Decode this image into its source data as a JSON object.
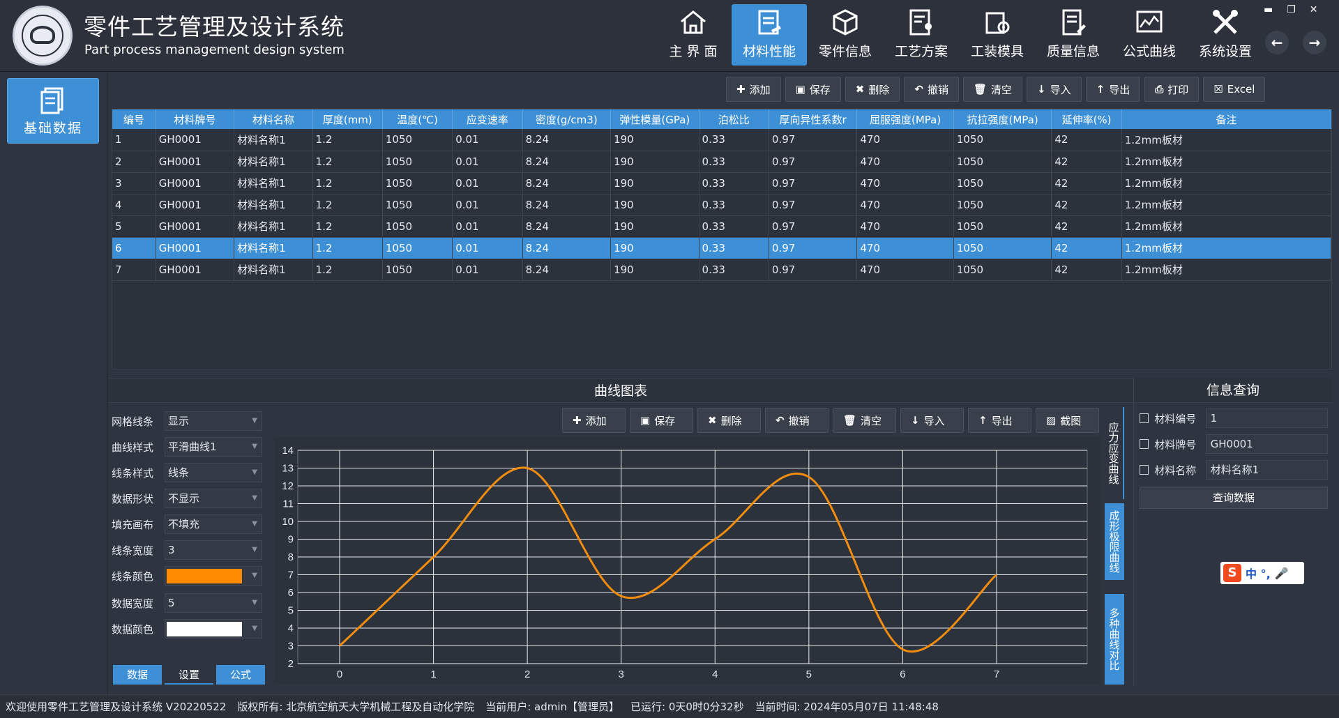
{
  "app": {
    "title_cn": "零件工艺管理及设计系统",
    "title_en": "Part process management design system",
    "nav": [
      {
        "label": "主 界 面",
        "icon": "home-icon"
      },
      {
        "label": "材料性能",
        "icon": "clipboard-icon",
        "active": true
      },
      {
        "label": "零件信息",
        "icon": "box-icon"
      },
      {
        "label": "工艺方案",
        "icon": "document-user-icon"
      },
      {
        "label": "工装模具",
        "icon": "gear-doc-icon"
      },
      {
        "label": "质量信息",
        "icon": "edit-doc-icon"
      },
      {
        "label": "公式曲线",
        "icon": "chart-icon"
      },
      {
        "label": "系统设置",
        "icon": "tools-icon"
      }
    ]
  },
  "sidebar": {
    "basic_data": "基础数据"
  },
  "toolbar": {
    "add": "添加",
    "save": "保存",
    "delete": "删除",
    "undo": "撤销",
    "clear": "清空",
    "import": "导入",
    "export": "导出",
    "print": "打印",
    "excel": "Excel",
    "screenshot": "截图"
  },
  "table": {
    "columns": [
      "编号",
      "材料牌号",
      "材料名称",
      "厚度(mm)",
      "温度(℃)",
      "应变速率",
      "密度(g/cm3)",
      "弹性模量(GPa)",
      "泊松比",
      "厚向异性系数r",
      "屈服强度(MPa)",
      "抗拉强度(MPa)",
      "延伸率(%)",
      "备注"
    ],
    "rows": [
      [
        "1",
        "GH0001",
        "材料名称1",
        "1.2",
        "1050",
        "0.01",
        "8.24",
        "190",
        "0.33",
        "0.97",
        "470",
        "1050",
        "42",
        "1.2mm板材"
      ],
      [
        "2",
        "GH0001",
        "材料名称1",
        "1.2",
        "1050",
        "0.01",
        "8.24",
        "190",
        "0.33",
        "0.97",
        "470",
        "1050",
        "42",
        "1.2mm板材"
      ],
      [
        "3",
        "GH0001",
        "材料名称1",
        "1.2",
        "1050",
        "0.01",
        "8.24",
        "190",
        "0.33",
        "0.97",
        "470",
        "1050",
        "42",
        "1.2mm板材"
      ],
      [
        "4",
        "GH0001",
        "材料名称1",
        "1.2",
        "1050",
        "0.01",
        "8.24",
        "190",
        "0.33",
        "0.97",
        "470",
        "1050",
        "42",
        "1.2mm板材"
      ],
      [
        "5",
        "GH0001",
        "材料名称1",
        "1.2",
        "1050",
        "0.01",
        "8.24",
        "190",
        "0.33",
        "0.97",
        "470",
        "1050",
        "42",
        "1.2mm板材"
      ],
      [
        "6",
        "GH0001",
        "材料名称1",
        "1.2",
        "1050",
        "0.01",
        "8.24",
        "190",
        "0.33",
        "0.97",
        "470",
        "1050",
        "42",
        "1.2mm板材"
      ],
      [
        "7",
        "GH0001",
        "材料名称1",
        "1.2",
        "1050",
        "0.01",
        "8.24",
        "190",
        "0.33",
        "0.97",
        "470",
        "1050",
        "42",
        "1.2mm板材"
      ]
    ],
    "selected_row": 5
  },
  "chart_panel": {
    "title": "曲线图表",
    "settings": [
      {
        "label": "网格线条",
        "value": "显示"
      },
      {
        "label": "曲线样式",
        "value": "平滑曲线1"
      },
      {
        "label": "线条样式",
        "value": "线条"
      },
      {
        "label": "数据形状",
        "value": "不显示"
      },
      {
        "label": "填充画布",
        "value": "不填充"
      },
      {
        "label": "线条宽度",
        "value": "3"
      },
      {
        "label": "线条颜色",
        "value": "",
        "color": "#ff8c00"
      },
      {
        "label": "数据宽度",
        "value": "5"
      },
      {
        "label": "数据颜色",
        "value": "",
        "color": "#ffffff"
      }
    ],
    "tabs": [
      "数据",
      "设置",
      "公式"
    ],
    "active_tab": "设置",
    "side_tabs": [
      "应力应变曲线",
      "成形极限曲线",
      "多种曲线对比"
    ]
  },
  "chart_data": {
    "type": "line",
    "x": [
      0,
      1,
      2,
      3,
      4,
      5,
      6,
      7
    ],
    "series": [
      {
        "values": [
          3,
          8,
          13,
          5.8,
          9,
          12.5,
          2.8,
          7
        ],
        "color": "#f28c0f"
      }
    ],
    "xlim": [
      0,
      7
    ],
    "ylim": [
      2,
      14
    ],
    "xticks": [
      "0",
      "1",
      "2",
      "3",
      "4",
      "5",
      "6",
      "7"
    ],
    "yticks": [
      "2",
      "3",
      "4",
      "5",
      "6",
      "7",
      "8",
      "9",
      "10",
      "11",
      "12",
      "13",
      "14"
    ],
    "grid": true
  },
  "query": {
    "title": "信息查询",
    "fields": [
      {
        "label": "材料编号",
        "value": "1"
      },
      {
        "label": "材料牌号",
        "value": "GH0001"
      },
      {
        "label": "材料名称",
        "value": "材料名称1"
      }
    ],
    "button": "查询数据"
  },
  "ime": {
    "mode": "中 °,"
  },
  "status": {
    "welcome": "欢迎使用零件工艺管理及设计系统 V20220522",
    "copyright": "版权所有: 北京航空航天大学机械工程及自动化学院",
    "user": "当前用户: admin【管理员】",
    "running": "已运行: 0天0时0分32秒",
    "time": "当前时间: 2024年05月07日 11:48:48"
  }
}
